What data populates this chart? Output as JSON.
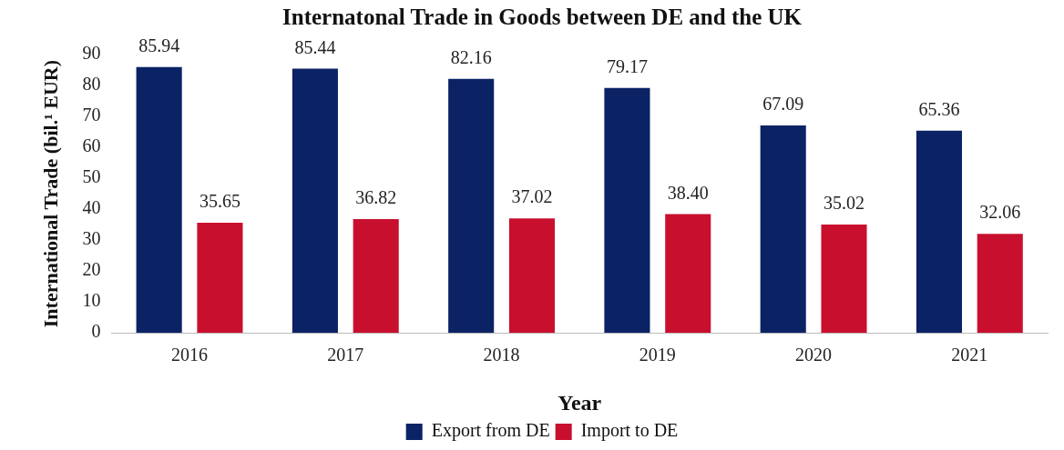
{
  "chart_data": {
    "type": "bar",
    "title": "Internatonal Trade in Goods between DE and the UK",
    "xlabel": "Year",
    "ylabel": "International Trade (bil.¹ EUR)",
    "categories": [
      "2016",
      "2017",
      "2018",
      "2019",
      "2020",
      "2021"
    ],
    "series": [
      {
        "name": "Export from DE",
        "color": "#0b2265",
        "values": [
          85.94,
          85.44,
          82.16,
          79.17,
          67.09,
          65.36
        ],
        "value_labels": [
          "85.94",
          "85.44",
          "82.16",
          "79.17",
          "67.09",
          "65.36"
        ]
      },
      {
        "name": "Import to DE",
        "color": "#c8102e",
        "values": [
          35.65,
          36.82,
          37.02,
          38.4,
          35.02,
          32.06
        ],
        "value_labels": [
          "35.65",
          "36.82",
          "37.02",
          "38.40",
          "35.02",
          "32.06"
        ]
      }
    ],
    "ylim": [
      0,
      90
    ],
    "yticks": [
      0,
      10,
      20,
      30,
      40,
      50,
      60,
      70,
      80,
      90
    ],
    "grid": false,
    "legend": "bottom"
  }
}
